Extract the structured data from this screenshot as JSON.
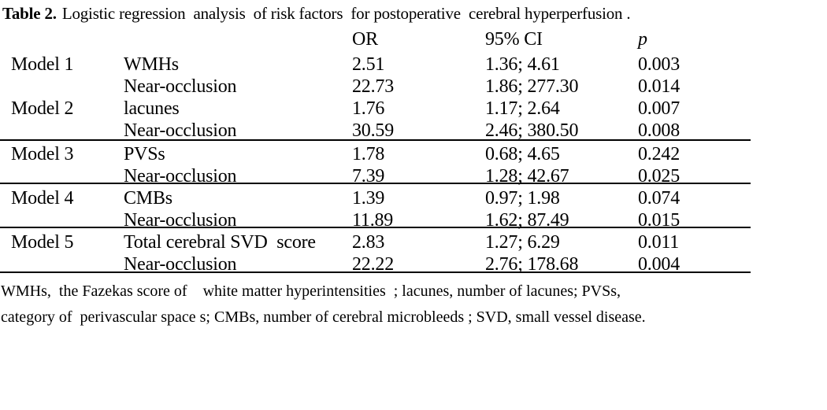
{
  "title": {
    "label": "Table 2.",
    "text": "Logistic regression  analysis  of risk factors  for postoperative  cerebral hyperperfusion ."
  },
  "table": {
    "header": {
      "or": "OR",
      "ci": "95% CI",
      "p": "p"
    },
    "rows": [
      {
        "model": "Model 1",
        "factor": "WMHs",
        "or": "2.51",
        "ci": "1.36; 4.61",
        "p": "0.003"
      },
      {
        "model": "",
        "factor": "Near-occlusion",
        "or": "22.73",
        "ci": "1.86; 277.30",
        "p": "0.014"
      },
      {
        "model": "Model 2",
        "factor": "lacunes",
        "or": "1.76",
        "ci": "1.17; 2.64",
        "p": "0.007"
      },
      {
        "model": "",
        "factor": "Near-occlusion",
        "or": "30.59",
        "ci": "2.46; 380.50",
        "p": "0.008"
      },
      {
        "model": "Model 3",
        "factor": "PVSs",
        "or": "1.78",
        "ci": "0.68; 4.65",
        "p": "0.242"
      },
      {
        "model": "",
        "factor": "Near-occlusion",
        "or": "7.39",
        "ci": "1.28; 42.67",
        "p": "0.025"
      },
      {
        "model": "Model 4",
        "factor": "CMBs",
        "or": "1.39",
        "ci": "0.97; 1.98",
        "p": "0.074"
      },
      {
        "model": "",
        "factor": "Near-occlusion",
        "or": "11.89",
        "ci": "1.62; 87.49",
        "p": "0.015"
      },
      {
        "model": "Model 5",
        "factor": "Total cerebral SVD  score",
        "or": "2.83",
        "ci": "1.27; 6.29",
        "p": "0.011"
      },
      {
        "model": "",
        "factor": "Near-occlusion",
        "or": "22.22",
        "ci": "2.76; 178.68",
        "p": "0.004"
      }
    ]
  },
  "footnote": {
    "line1": "WMHs,  the Fazekas score of    white matter hyperintensities  ; lacunes, number of lacunes; PVSs,",
    "line2": "category of  perivascular space s; CMBs, number of cerebral microbleeds ; SVD, small vessel disease."
  },
  "colors": {
    "background": "#ffffff",
    "text": "#000000",
    "rule": "#000000"
  }
}
